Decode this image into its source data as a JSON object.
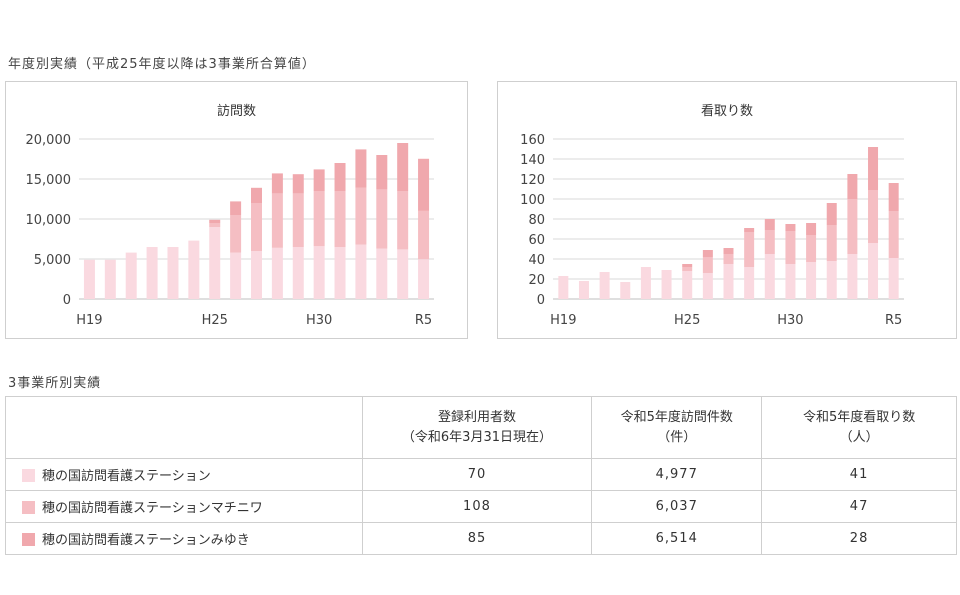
{
  "section1_title": "年度別実績（平成25年度以降は3事業所合算値）",
  "section2_title": "3事業所別実績",
  "colors": {
    "station1": "#fad9e0",
    "station2": "#f5bec3",
    "station3": "#f0a8ad",
    "grid": "#d9d9d9",
    "axis": "#bfbfbf"
  },
  "chart_data": [
    {
      "type": "bar",
      "stacked": true,
      "title": "訪問数",
      "categories": [
        "H19",
        "H20",
        "H21",
        "H22",
        "H23",
        "H24",
        "H25",
        "H26",
        "H27",
        "H28",
        "H29",
        "H30",
        "R1",
        "R2",
        "R3",
        "R4",
        "R5"
      ],
      "x_tick_labels": [
        "H19",
        "H25",
        "H30",
        "R5"
      ],
      "y_tick_labels": [
        "0",
        "5,000",
        "10,000",
        "15,000",
        "20,000"
      ],
      "ylim": [
        0,
        20000
      ],
      "y_ticks": [
        0,
        5000,
        10000,
        15000,
        20000
      ],
      "grid": true,
      "series": [
        {
          "values": [
            4900,
            4900,
            5800,
            6500,
            6500,
            7300,
            9000,
            5800,
            6000,
            6400,
            6500,
            6600,
            6500,
            6800,
            6300,
            6200,
            4977
          ]
        },
        {
          "values": [
            0,
            0,
            0,
            0,
            0,
            0,
            500,
            4700,
            6000,
            6800,
            6700,
            6900,
            7000,
            7100,
            7400,
            7300,
            6037
          ]
        },
        {
          "values": [
            0,
            0,
            0,
            0,
            0,
            0,
            400,
            1700,
            1900,
            2500,
            2400,
            2700,
            3500,
            4800,
            4300,
            6000,
            6514
          ]
        }
      ]
    },
    {
      "type": "bar",
      "stacked": true,
      "title": "看取り数",
      "categories": [
        "H19",
        "H20",
        "H21",
        "H22",
        "H23",
        "H24",
        "H25",
        "H26",
        "H27",
        "H28",
        "H29",
        "H30",
        "R1",
        "R2",
        "R3",
        "R4",
        "R5"
      ],
      "x_tick_labels": [
        "H19",
        "H25",
        "H30",
        "R5"
      ],
      "y_tick_labels": [
        "0",
        "20",
        "40",
        "60",
        "80",
        "100",
        "120",
        "140",
        "160"
      ],
      "ylim": [
        0,
        160
      ],
      "y_ticks": [
        0,
        20,
        40,
        60,
        80,
        100,
        120,
        140,
        160
      ],
      "grid": true,
      "series": [
        {
          "values": [
            23,
            18,
            27,
            17,
            32,
            29,
            28,
            26,
            35,
            32,
            45,
            35,
            37,
            38,
            45,
            56,
            41
          ]
        },
        {
          "values": [
            0,
            0,
            0,
            0,
            0,
            0,
            4,
            16,
            10,
            35,
            24,
            33,
            27,
            36,
            55,
            53,
            47
          ]
        },
        {
          "values": [
            0,
            0,
            0,
            0,
            0,
            0,
            3,
            7,
            6,
            4,
            11,
            7,
            12,
            22,
            25,
            43,
            28
          ]
        }
      ]
    }
  ],
  "table": {
    "headers": {
      "col1": "",
      "col2_line1": "登録利用者数",
      "col2_line2": "（令和6年3月31日現在）",
      "col3_line1": "令和5年度訪問件数",
      "col3_line2": "（件）",
      "col4_line1": "令和5年度看取り数",
      "col4_line2": "（人）"
    },
    "rows": [
      {
        "name": "穂の国訪問看護ステーション",
        "users": "70",
        "visits": "4,977",
        "deaths": "41"
      },
      {
        "name": "穂の国訪問看護ステーションマチニワ",
        "users": "108",
        "visits": "6,037",
        "deaths": "47"
      },
      {
        "name": "穂の国訪問看護ステーションみゆき",
        "users": "85",
        "visits": "6,514",
        "deaths": "28"
      }
    ]
  }
}
